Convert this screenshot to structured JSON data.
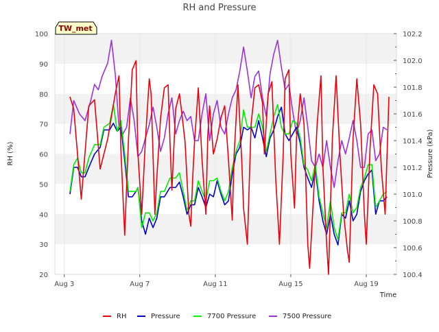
{
  "chart_data": {
    "type": "line",
    "title": "RH and Pressure",
    "station_label": "TW_met",
    "xlabel": "Time",
    "ylabel_left": "RH (%)",
    "ylabel_right": "Pressure (kPa)",
    "x_range_days": [
      2.5,
      20.6
    ],
    "x_ticks": [
      {
        "day": 3,
        "label": "Aug 3"
      },
      {
        "day": 7,
        "label": "Aug 7"
      },
      {
        "day": 11,
        "label": "Aug 11"
      },
      {
        "day": 15,
        "label": "Aug 15"
      },
      {
        "day": 19,
        "label": "Aug 19"
      }
    ],
    "ylim_left": [
      20,
      100
    ],
    "ylim_right": [
      100.4,
      102.2
    ],
    "y_ticks_left": [
      "20",
      "30",
      "40",
      "50",
      "60",
      "70",
      "80",
      "90",
      "100"
    ],
    "y_ticks_right": [
      "100.4",
      "100.6",
      "100.8",
      "101.0",
      "101.2",
      "101.4",
      "101.6",
      "101.8",
      "102.0",
      "102.2"
    ],
    "legend_position": "bottom",
    "grid": "alternating horizontal bands",
    "colors": {
      "RH": "#e8000b",
      "Pressure": "#0000cc",
      "7700 Pressure": "#00ee00",
      "7500 Pressure": "#9b30e0",
      "band": "#f2f2f2",
      "badge_bg": "#ffffcc"
    },
    "series": [
      {
        "name": "RH",
        "axis": "left",
        "x": [
          3.3,
          3.5,
          3.9,
          4.3,
          4.6,
          4.9,
          5.3,
          5.7,
          5.9,
          6.0,
          6.2,
          6.4,
          6.5,
          6.6,
          6.8,
          6.9,
          7.1,
          7.3,
          7.5,
          7.6,
          7.8,
          7.9,
          8.1,
          8.3,
          8.5,
          8.6,
          8.7,
          8.9,
          9.1,
          9.2,
          9.4,
          9.6,
          9.7,
          9.8,
          9.9,
          10.1,
          10.3,
          10.5,
          10.6,
          10.7,
          10.9,
          11.1,
          11.3,
          11.5,
          11.7,
          11.9,
          12.0,
          12.2,
          12.4,
          12.5,
          12.7,
          12.9,
          13.1,
          13.3,
          13.5,
          13.6,
          13.8,
          14.0,
          14.2,
          14.4,
          14.6,
          14.7,
          14.9,
          15.0,
          15.2,
          15.3,
          15.5,
          15.7,
          15.9,
          16.0,
          16.2,
          16.4,
          16.6,
          16.7,
          16.9,
          17.0,
          17.2,
          17.4,
          17.6,
          17.8,
          18.0,
          18.1,
          18.3,
          18.5,
          18.7,
          18.9,
          19.0,
          19.2,
          19.4,
          19.6,
          19.8,
          20.0,
          20.2
        ],
        "y": [
          79,
          75,
          45,
          76,
          78,
          55,
          65,
          80,
          86,
          61,
          33,
          65,
          76,
          88,
          91,
          60,
          40,
          65,
          85,
          80,
          40,
          52,
          72,
          82,
          83,
          64,
          48,
          75,
          80,
          75,
          64,
          40,
          36,
          52,
          64,
          82,
          58,
          40,
          66,
          76,
          60,
          65,
          72,
          76,
          58,
          38,
          60,
          83,
          58,
          42,
          30,
          70,
          82,
          83,
          77,
          60,
          80,
          84,
          52,
          30,
          60,
          85,
          88,
          60,
          42,
          65,
          80,
          70,
          30,
          22,
          45,
          70,
          86,
          56,
          30,
          20,
          65,
          86,
          60,
          40,
          28,
          24,
          65,
          85,
          70,
          40,
          30,
          62,
          83,
          80,
          55,
          40,
          79
        ]
      },
      {
        "name": "Pressure",
        "axis": "left",
        "x": [
          3.3,
          3.5,
          3.7,
          3.9,
          4.1,
          4.3,
          4.6,
          4.9,
          5.1,
          5.4,
          5.6,
          5.8,
          6.0,
          6.2,
          6.4,
          6.6,
          6.8,
          6.9,
          7.1,
          7.3,
          7.5,
          7.7,
          7.9,
          8.1,
          8.3,
          8.6,
          8.9,
          9.1,
          9.3,
          9.5,
          9.7,
          9.9,
          10.1,
          10.3,
          10.5,
          10.7,
          10.9,
          11.1,
          11.3,
          11.5,
          11.7,
          11.9,
          12.1,
          12.3,
          12.5,
          12.7,
          12.9,
          13.1,
          13.3,
          13.5,
          13.7,
          13.9,
          14.1,
          14.3,
          14.5,
          14.7,
          14.9,
          15.1,
          15.3,
          15.5,
          15.7,
          15.9,
          16.1,
          16.3,
          16.5,
          16.7,
          16.9,
          17.1,
          17.3,
          17.5,
          17.7,
          17.9,
          18.1,
          18.3,
          18.5,
          18.7,
          18.9,
          19.1,
          19.3,
          19.5,
          19.7,
          19.9,
          20.1
        ],
        "y": [
          101.0,
          101.2,
          101.2,
          101.13,
          101.13,
          101.2,
          101.3,
          101.35,
          101.48,
          101.48,
          101.53,
          101.47,
          101.5,
          101.25,
          100.98,
          100.98,
          101.02,
          101.05,
          100.8,
          100.7,
          100.82,
          100.75,
          100.82,
          100.98,
          100.98,
          101.05,
          101.05,
          101.09,
          100.98,
          100.85,
          100.92,
          100.92,
          101.05,
          100.98,
          100.9,
          101.0,
          100.98,
          101.1,
          101.0,
          100.92,
          100.95,
          101.15,
          101.3,
          101.35,
          101.5,
          101.48,
          101.5,
          101.42,
          101.55,
          101.42,
          101.28,
          101.42,
          101.48,
          101.58,
          101.65,
          101.45,
          101.4,
          101.45,
          101.5,
          101.38,
          101.2,
          101.12,
          101.05,
          101.18,
          100.95,
          100.8,
          100.7,
          100.85,
          100.7,
          100.62,
          100.85,
          100.82,
          100.95,
          100.8,
          100.85,
          101.02,
          101.1,
          101.15,
          101.18,
          100.85,
          100.95,
          100.95,
          100.98
        ]
      },
      {
        "name": "7700 Pressure",
        "axis": "left",
        "x": [
          3.3,
          3.5,
          3.7,
          3.9,
          4.1,
          4.3,
          4.6,
          4.9,
          5.1,
          5.4,
          5.6,
          5.8,
          6.0,
          6.2,
          6.4,
          6.6,
          6.8,
          6.9,
          7.1,
          7.3,
          7.5,
          7.7,
          7.9,
          8.1,
          8.3,
          8.6,
          8.9,
          9.1,
          9.3,
          9.5,
          9.7,
          9.9,
          10.1,
          10.3,
          10.5,
          10.7,
          10.9,
          11.1,
          11.3,
          11.5,
          11.7,
          11.9,
          12.1,
          12.3,
          12.5,
          12.7,
          12.9,
          13.1,
          13.3,
          13.5,
          13.7,
          13.9,
          14.1,
          14.3,
          14.5,
          14.7,
          14.9,
          15.1,
          15.3,
          15.5,
          15.7,
          15.9,
          16.1,
          16.3,
          16.5,
          16.7,
          16.9,
          17.1,
          17.3,
          17.5,
          17.7,
          17.9,
          18.1,
          18.3,
          18.5,
          18.7,
          18.9,
          19.1,
          19.3,
          19.5,
          19.7,
          19.9,
          20.1
        ],
        "y": [
          101.02,
          101.22,
          101.27,
          101.16,
          101.16,
          101.27,
          101.37,
          101.37,
          101.5,
          101.53,
          101.67,
          101.47,
          101.55,
          101.3,
          101.02,
          101.02,
          101.02,
          101.05,
          100.75,
          100.86,
          100.86,
          100.8,
          100.86,
          101.02,
          101.02,
          101.12,
          101.12,
          101.16,
          101.02,
          100.88,
          100.95,
          100.95,
          101.1,
          101.02,
          100.95,
          101.1,
          101.1,
          101.12,
          101.02,
          100.95,
          101.02,
          101.2,
          101.32,
          101.4,
          101.63,
          101.5,
          101.5,
          101.5,
          101.6,
          101.5,
          101.32,
          101.45,
          101.58,
          101.67,
          101.5,
          101.45,
          101.45,
          101.55,
          101.53,
          101.42,
          101.22,
          101.18,
          101.1,
          101.22,
          100.98,
          100.86,
          100.75,
          100.95,
          100.75,
          100.66,
          100.86,
          100.86,
          101.0,
          100.86,
          100.9,
          101.05,
          101.12,
          101.22,
          101.22,
          100.9,
          100.95,
          101.0,
          101.02
        ]
      },
      {
        "name": "7500 Pressure",
        "axis": "left",
        "x": [
          3.3,
          3.5,
          3.8,
          4.1,
          4.4,
          4.6,
          4.8,
          5.0,
          5.3,
          5.5,
          5.7,
          5.9,
          6.1,
          6.3,
          6.5,
          6.7,
          6.9,
          7.1,
          7.3,
          7.5,
          7.7,
          7.9,
          8.1,
          8.3,
          8.5,
          8.7,
          8.9,
          9.1,
          9.3,
          9.5,
          9.7,
          9.9,
          10.1,
          10.3,
          10.5,
          10.7,
          10.9,
          11.1,
          11.3,
          11.5,
          11.7,
          11.9,
          12.1,
          12.3,
          12.5,
          12.7,
          12.9,
          13.1,
          13.3,
          13.5,
          13.7,
          13.9,
          14.1,
          14.3,
          14.5,
          14.7,
          14.9,
          15.1,
          15.3,
          15.5,
          15.7,
          15.9,
          16.1,
          16.3,
          16.5,
          16.7,
          16.9,
          17.1,
          17.3,
          17.5,
          17.7,
          17.9,
          18.1,
          18.3,
          18.5,
          18.7,
          18.9,
          19.1,
          19.3,
          19.5,
          19.7,
          19.9,
          20.1
        ],
        "y": [
          101.45,
          101.7,
          101.6,
          101.55,
          101.7,
          101.82,
          101.78,
          101.88,
          101.98,
          102.15,
          101.9,
          101.5,
          101.45,
          101.5,
          101.72,
          101.55,
          101.28,
          101.32,
          101.42,
          101.52,
          101.65,
          101.5,
          101.32,
          101.42,
          101.6,
          101.72,
          101.45,
          101.55,
          101.62,
          101.55,
          101.58,
          101.4,
          101.4,
          101.6,
          101.75,
          101.4,
          101.6,
          101.7,
          101.5,
          101.45,
          101.6,
          101.72,
          101.78,
          101.92,
          102.1,
          101.92,
          101.72,
          101.88,
          101.92,
          101.72,
          101.58,
          101.9,
          102.05,
          102.15,
          101.95,
          101.78,
          101.82,
          101.62,
          101.45,
          101.55,
          101.72,
          101.5,
          101.25,
          101.2,
          101.3,
          101.2,
          101.4,
          101.2,
          101.05,
          101.25,
          101.4,
          101.3,
          101.42,
          101.55,
          101.4,
          101.2,
          101.2,
          101.45,
          101.48,
          101.25,
          101.3,
          101.5,
          101.48
        ]
      }
    ]
  }
}
